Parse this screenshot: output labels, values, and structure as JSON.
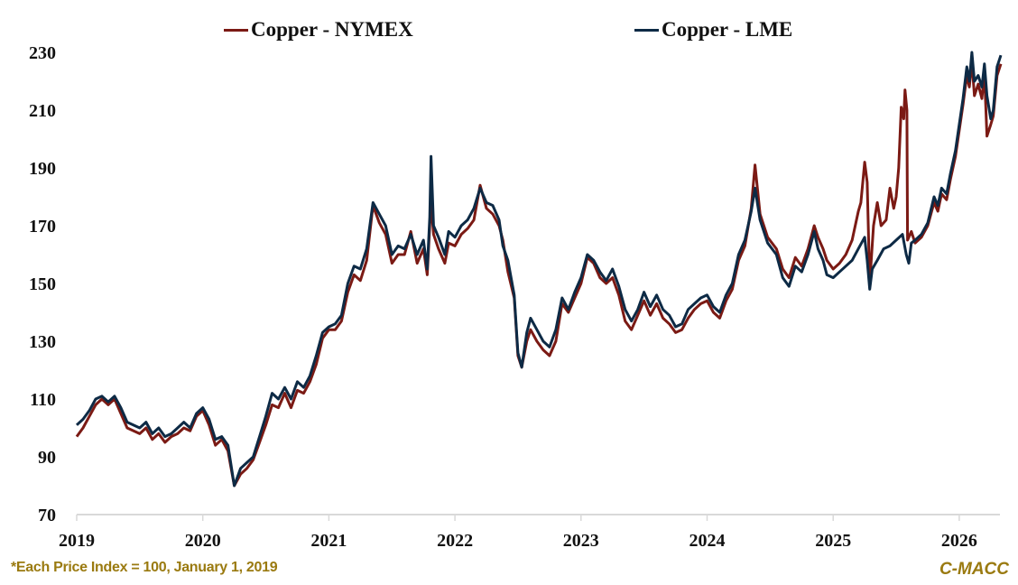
{
  "chart_data": {
    "type": "line",
    "title": "",
    "xlabel": "",
    "ylabel": "",
    "xlim": [
      2019,
      2026.4
    ],
    "ylim": [
      70,
      230
    ],
    "yticks": [
      70,
      90,
      110,
      130,
      150,
      170,
      190,
      210,
      230
    ],
    "xticks": [
      2019,
      2020,
      2021,
      2022,
      2023,
      2024,
      2025,
      2026
    ],
    "grid": false,
    "legend_placement": "top",
    "series": [
      {
        "name": "Copper - NYMEX",
        "color": "#7B1A14",
        "x": [
          2019.0,
          2019.05,
          2019.1,
          2019.15,
          2019.2,
          2019.25,
          2019.3,
          2019.35,
          2019.4,
          2019.5,
          2019.55,
          2019.6,
          2019.65,
          2019.7,
          2019.75,
          2019.8,
          2019.85,
          2019.9,
          2019.95,
          2020.0,
          2020.05,
          2020.1,
          2020.15,
          2020.2,
          2020.25,
          2020.3,
          2020.35,
          2020.4,
          2020.45,
          2020.5,
          2020.55,
          2020.6,
          2020.65,
          2020.7,
          2020.75,
          2020.8,
          2020.85,
          2020.9,
          2020.95,
          2021.0,
          2021.05,
          2021.1,
          2021.15,
          2021.2,
          2021.25,
          2021.3,
          2021.35,
          2021.4,
          2021.45,
          2021.5,
          2021.55,
          2021.6,
          2021.65,
          2021.7,
          2021.75,
          2021.78,
          2021.8,
          2021.81,
          2021.83,
          2021.87,
          2021.92,
          2021.95,
          2022.0,
          2022.05,
          2022.1,
          2022.15,
          2022.2,
          2022.25,
          2022.3,
          2022.35,
          2022.38,
          2022.42,
          2022.47,
          2022.5,
          2022.53,
          2022.57,
          2022.6,
          2022.65,
          2022.7,
          2022.75,
          2022.8,
          2022.85,
          2022.9,
          2022.95,
          2023.0,
          2023.05,
          2023.1,
          2023.15,
          2023.2,
          2023.25,
          2023.3,
          2023.35,
          2023.4,
          2023.45,
          2023.5,
          2023.55,
          2023.6,
          2023.65,
          2023.7,
          2023.75,
          2023.8,
          2023.85,
          2023.9,
          2023.95,
          2024.0,
          2024.05,
          2024.1,
          2024.15,
          2024.2,
          2024.25,
          2024.3,
          2024.35,
          2024.38,
          2024.42,
          2024.48,
          2024.55,
          2024.6,
          2024.65,
          2024.7,
          2024.75,
          2024.8,
          2024.85,
          2024.88,
          2024.92,
          2024.95,
          2025.0,
          2025.05,
          2025.1,
          2025.15,
          2025.2,
          2025.22,
          2025.25,
          2025.27,
          2025.29,
          2025.32,
          2025.35,
          2025.38,
          2025.42,
          2025.45,
          2025.48,
          2025.5,
          2025.52,
          2025.54,
          2025.56,
          2025.57,
          2025.585,
          2025.59,
          2025.62,
          2025.65,
          2025.7,
          2025.75,
          2025.8,
          2025.83,
          2025.86,
          2025.9,
          2025.93,
          2025.97,
          2026.0,
          2026.03,
          2026.06,
          2026.08,
          2026.1,
          2026.12,
          2026.15,
          2026.18,
          2026.2,
          2026.22,
          2026.25,
          2026.27,
          2026.3,
          2026.33
        ],
        "values": [
          97,
          100,
          104,
          108,
          110,
          108,
          110,
          105,
          100,
          98,
          100,
          96,
          98,
          95,
          97,
          98,
          100,
          99,
          104,
          106,
          101,
          94,
          96,
          92,
          80,
          84,
          86,
          89,
          95,
          101,
          108,
          107,
          112,
          107,
          113,
          112,
          116,
          122,
          131,
          134,
          134,
          137,
          147,
          153,
          151,
          158,
          177,
          171,
          167,
          157,
          160,
          160,
          168,
          157,
          162,
          153,
          170,
          178,
          167,
          162,
          157,
          164,
          163,
          167,
          169,
          172,
          184,
          176,
          174,
          170,
          165,
          154,
          145,
          125,
          121,
          130,
          134,
          130,
          127,
          125,
          130,
          143,
          140,
          145,
          150,
          159,
          157,
          152,
          150,
          152,
          146,
          137,
          134,
          139,
          144,
          139,
          143,
          138,
          136,
          133,
          134,
          138,
          141,
          143,
          144,
          140,
          138,
          144,
          148,
          158,
          163,
          176,
          191,
          174,
          166,
          162,
          155,
          152,
          159,
          156,
          162,
          170,
          166,
          162,
          158,
          155,
          157,
          160,
          165,
          175,
          178,
          192,
          185,
          150,
          170,
          178,
          170,
          172,
          183,
          176,
          180,
          190,
          211,
          207,
          217,
          210,
          165,
          168,
          164,
          166,
          170,
          178,
          175,
          181,
          179,
          186,
          194,
          203,
          212,
          222,
          218,
          227,
          215,
          219,
          214,
          223,
          201,
          205,
          208,
          222,
          226
        ]
      },
      {
        "name": "Copper - LME",
        "color": "#0D2A45",
        "x": [
          2019.0,
          2019.05,
          2019.1,
          2019.15,
          2019.2,
          2019.25,
          2019.3,
          2019.35,
          2019.4,
          2019.5,
          2019.55,
          2019.6,
          2019.65,
          2019.7,
          2019.75,
          2019.8,
          2019.85,
          2019.9,
          2019.95,
          2020.0,
          2020.05,
          2020.1,
          2020.15,
          2020.2,
          2020.25,
          2020.3,
          2020.35,
          2020.4,
          2020.45,
          2020.5,
          2020.55,
          2020.6,
          2020.65,
          2020.7,
          2020.75,
          2020.8,
          2020.85,
          2020.9,
          2020.95,
          2021.0,
          2021.05,
          2021.1,
          2021.15,
          2021.2,
          2021.25,
          2021.3,
          2021.35,
          2021.4,
          2021.45,
          2021.5,
          2021.55,
          2021.6,
          2021.65,
          2021.7,
          2021.75,
          2021.78,
          2021.8,
          2021.81,
          2021.83,
          2021.87,
          2021.92,
          2021.95,
          2022.0,
          2022.05,
          2022.1,
          2022.15,
          2022.2,
          2022.25,
          2022.3,
          2022.35,
          2022.38,
          2022.42,
          2022.47,
          2022.5,
          2022.53,
          2022.57,
          2022.6,
          2022.65,
          2022.7,
          2022.75,
          2022.8,
          2022.85,
          2022.9,
          2022.95,
          2023.0,
          2023.05,
          2023.1,
          2023.15,
          2023.2,
          2023.25,
          2023.3,
          2023.35,
          2023.4,
          2023.45,
          2023.5,
          2023.55,
          2023.6,
          2023.65,
          2023.7,
          2023.75,
          2023.8,
          2023.85,
          2023.9,
          2023.95,
          2024.0,
          2024.05,
          2024.1,
          2024.15,
          2024.2,
          2024.25,
          2024.3,
          2024.35,
          2024.38,
          2024.42,
          2024.48,
          2024.55,
          2024.6,
          2024.65,
          2024.7,
          2024.75,
          2024.8,
          2024.85,
          2024.88,
          2024.92,
          2024.95,
          2025.0,
          2025.05,
          2025.1,
          2025.15,
          2025.2,
          2025.25,
          2025.27,
          2025.29,
          2025.31,
          2025.35,
          2025.4,
          2025.45,
          2025.5,
          2025.55,
          2025.58,
          2025.6,
          2025.62,
          2025.65,
          2025.7,
          2025.75,
          2025.8,
          2025.83,
          2025.86,
          2025.9,
          2025.93,
          2025.97,
          2026.0,
          2026.03,
          2026.06,
          2026.08,
          2026.1,
          2026.12,
          2026.15,
          2026.18,
          2026.2,
          2026.22,
          2026.25,
          2026.27,
          2026.3,
          2026.33
        ],
        "values": [
          101,
          103,
          106,
          110,
          111,
          109,
          111,
          107,
          102,
          100,
          102,
          98,
          100,
          97,
          98,
          100,
          102,
          100,
          105,
          107,
          103,
          96,
          97,
          94,
          80,
          86,
          88,
          90,
          97,
          104,
          112,
          110,
          114,
          110,
          116,
          114,
          118,
          125,
          133,
          135,
          136,
          139,
          150,
          156,
          155,
          162,
          178,
          174,
          170,
          160,
          163,
          162,
          167,
          160,
          165,
          155,
          173,
          194,
          170,
          166,
          160,
          168,
          166,
          170,
          172,
          176,
          183,
          178,
          177,
          172,
          163,
          158,
          146,
          126,
          121,
          133,
          138,
          134,
          130,
          128,
          134,
          145,
          141,
          147,
          152,
          160,
          158,
          154,
          151,
          155,
          149,
          141,
          137,
          141,
          147,
          142,
          146,
          141,
          139,
          135,
          136,
          141,
          143,
          145,
          146,
          142,
          140,
          146,
          150,
          160,
          165,
          175,
          183,
          172,
          164,
          160,
          152,
          149,
          156,
          154,
          160,
          168,
          162,
          158,
          153,
          152,
          154,
          156,
          158,
          162,
          166,
          158,
          148,
          155,
          158,
          162,
          163,
          165,
          167,
          160,
          157,
          164,
          165,
          167,
          171,
          180,
          177,
          183,
          181,
          188,
          196,
          205,
          214,
          225,
          220,
          230,
          220,
          222,
          218,
          226,
          215,
          207,
          210,
          225,
          229
        ]
      }
    ],
    "footnote": "*Each Price Index = 100, January 1, 2019",
    "source": "C-MACC"
  }
}
